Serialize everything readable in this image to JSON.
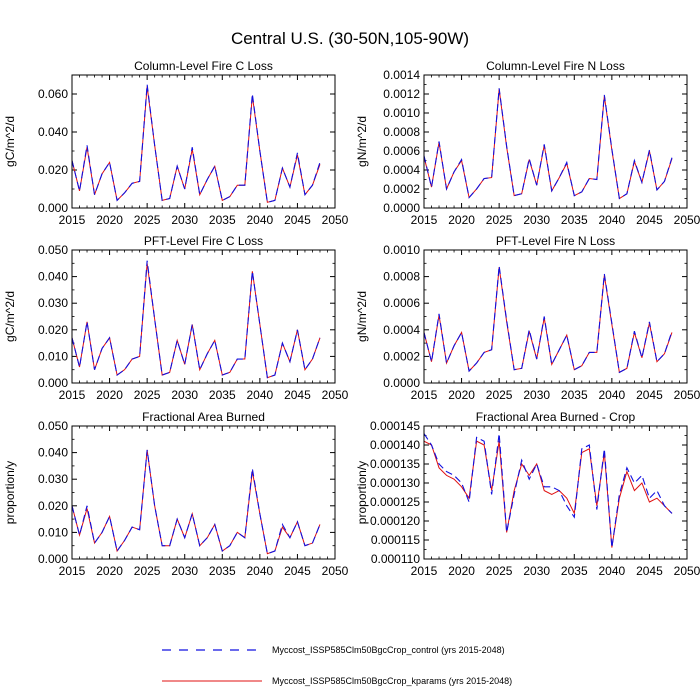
{
  "title": "Central U.S. (30-50N,105-90W)",
  "colors": {
    "control": "#1010e0",
    "kparams": "#e01010"
  },
  "legend": {
    "control": "Myccost_ISSP585Clm50BgcCrop_control (yrs 2015-2048)",
    "kparams": "Myccost_ISSP585Clm50BgcCrop_kparams (yrs 2015-2048)"
  },
  "chart_data": [
    {
      "type": "line",
      "title": "Column-Level Fire C Loss",
      "ylabel": "gC/m^2/d",
      "xlim": [
        2015,
        2050
      ],
      "ylim": [
        0,
        0.07
      ],
      "xticks": [
        2015,
        2020,
        2025,
        2030,
        2035,
        2040,
        2045,
        2050
      ],
      "yticks": [
        0,
        0.02,
        0.04,
        0.06
      ],
      "ytick_labels": [
        "0.000",
        "0.020",
        "0.040",
        "0.060"
      ],
      "x": [
        2015,
        2016,
        2017,
        2018,
        2019,
        2020,
        2021,
        2022,
        2023,
        2024,
        2025,
        2026,
        2027,
        2028,
        2029,
        2030,
        2031,
        2032,
        2033,
        2034,
        2035,
        2036,
        2037,
        2038,
        2039,
        2040,
        2041,
        2042,
        2043,
        2044,
        2045,
        2046,
        2047,
        2048
      ],
      "series": [
        {
          "name": "control",
          "values": [
            0.025,
            0.009,
            0.033,
            0.007,
            0.018,
            0.024,
            0.004,
            0.008,
            0.013,
            0.014,
            0.065,
            0.033,
            0.004,
            0.005,
            0.022,
            0.01,
            0.032,
            0.007,
            0.015,
            0.022,
            0.004,
            0.006,
            0.012,
            0.012,
            0.06,
            0.03,
            0.003,
            0.004,
            0.021,
            0.011,
            0.029,
            0.007,
            0.012,
            0.024
          ]
        },
        {
          "name": "kparams",
          "values": [
            0.025,
            0.009,
            0.032,
            0.007,
            0.018,
            0.024,
            0.004,
            0.008,
            0.013,
            0.014,
            0.064,
            0.033,
            0.004,
            0.005,
            0.022,
            0.01,
            0.031,
            0.007,
            0.015,
            0.022,
            0.004,
            0.006,
            0.012,
            0.012,
            0.059,
            0.03,
            0.003,
            0.004,
            0.021,
            0.011,
            0.028,
            0.007,
            0.012,
            0.023
          ]
        }
      ]
    },
    {
      "type": "line",
      "title": "Column-Level Fire N Loss",
      "ylabel": "gN/m^2/d",
      "xlim": [
        2015,
        2050
      ],
      "ylim": [
        0,
        0.0014
      ],
      "xticks": [
        2015,
        2020,
        2025,
        2030,
        2035,
        2040,
        2045,
        2050
      ],
      "yticks": [
        0,
        0.0002,
        0.0004,
        0.0006,
        0.0008,
        0.001,
        0.0012,
        0.0014
      ],
      "ytick_labels": [
        "0.0000",
        "0.0002",
        "0.0004",
        "0.0006",
        "0.0008",
        "0.0010",
        "0.0012",
        "0.0014"
      ],
      "x": [
        2015,
        2016,
        2017,
        2018,
        2019,
        2020,
        2021,
        2022,
        2023,
        2024,
        2025,
        2026,
        2027,
        2028,
        2029,
        2030,
        2031,
        2032,
        2033,
        2034,
        2035,
        2036,
        2037,
        2038,
        2039,
        2040,
        2041,
        2042,
        2043,
        2044,
        2045,
        2046,
        2047,
        2048
      ],
      "series": [
        {
          "name": "control",
          "values": [
            0.00055,
            0.00022,
            0.0007,
            0.0002,
            0.00038,
            0.00051,
            0.00011,
            0.0002,
            0.00031,
            0.00032,
            0.00126,
            0.00065,
            0.00013,
            0.00015,
            0.00052,
            0.00024,
            0.00067,
            0.00018,
            0.00032,
            0.00048,
            0.00013,
            0.00017,
            0.00031,
            0.0003,
            0.00119,
            0.00062,
            0.0001,
            0.00015,
            0.0005,
            0.00027,
            0.00061,
            0.00019,
            0.00028,
            0.00053
          ]
        },
        {
          "name": "kparams",
          "values": [
            0.00054,
            0.00022,
            0.00069,
            0.0002,
            0.00038,
            0.0005,
            0.00011,
            0.0002,
            0.00031,
            0.00032,
            0.00125,
            0.00064,
            0.00013,
            0.00015,
            0.00051,
            0.00024,
            0.00066,
            0.00018,
            0.00032,
            0.00047,
            0.00013,
            0.00017,
            0.00031,
            0.0003,
            0.00118,
            0.00061,
            0.0001,
            0.00015,
            0.00049,
            0.00027,
            0.0006,
            0.00019,
            0.00028,
            0.00052
          ]
        }
      ]
    },
    {
      "type": "line",
      "title": "PFT-Level Fire C Loss",
      "ylabel": "gC/m^2/d",
      "xlim": [
        2015,
        2050
      ],
      "ylim": [
        0,
        0.05
      ],
      "xticks": [
        2015,
        2020,
        2025,
        2030,
        2035,
        2040,
        2045,
        2050
      ],
      "yticks": [
        0,
        0.01,
        0.02,
        0.03,
        0.04,
        0.05
      ],
      "ytick_labels": [
        "0.000",
        "0.010",
        "0.020",
        "0.030",
        "0.040",
        "0.050"
      ],
      "x": [
        2015,
        2016,
        2017,
        2018,
        2019,
        2020,
        2021,
        2022,
        2023,
        2024,
        2025,
        2026,
        2027,
        2028,
        2029,
        2030,
        2031,
        2032,
        2033,
        2034,
        2035,
        2036,
        2037,
        2038,
        2039,
        2040,
        2041,
        2042,
        2043,
        2044,
        2045,
        2046,
        2047,
        2048
      ],
      "series": [
        {
          "name": "control",
          "values": [
            0.017,
            0.006,
            0.023,
            0.005,
            0.013,
            0.017,
            0.003,
            0.005,
            0.009,
            0.01,
            0.046,
            0.024,
            0.003,
            0.004,
            0.016,
            0.007,
            0.022,
            0.005,
            0.011,
            0.016,
            0.003,
            0.004,
            0.009,
            0.009,
            0.042,
            0.022,
            0.002,
            0.003,
            0.015,
            0.008,
            0.02,
            0.005,
            0.009,
            0.017
          ]
        },
        {
          "name": "kparams",
          "values": [
            0.017,
            0.006,
            0.023,
            0.005,
            0.013,
            0.017,
            0.003,
            0.005,
            0.009,
            0.01,
            0.045,
            0.024,
            0.003,
            0.004,
            0.016,
            0.007,
            0.022,
            0.005,
            0.011,
            0.016,
            0.003,
            0.004,
            0.009,
            0.009,
            0.042,
            0.022,
            0.002,
            0.003,
            0.015,
            0.008,
            0.02,
            0.005,
            0.009,
            0.017
          ]
        }
      ]
    },
    {
      "type": "line",
      "title": "PFT-Level Fire N Loss",
      "ylabel": "gN/m^2/d",
      "xlim": [
        2015,
        2050
      ],
      "ylim": [
        0,
        0.001
      ],
      "xticks": [
        2015,
        2020,
        2025,
        2030,
        2035,
        2040,
        2045,
        2050
      ],
      "yticks": [
        0,
        0.0002,
        0.0004,
        0.0006,
        0.0008,
        0.001
      ],
      "ytick_labels": [
        "0.0000",
        "0.0002",
        "0.0004",
        "0.0006",
        "0.0008",
        "0.0010"
      ],
      "x": [
        2015,
        2016,
        2017,
        2018,
        2019,
        2020,
        2021,
        2022,
        2023,
        2024,
        2025,
        2026,
        2027,
        2028,
        2029,
        2030,
        2031,
        2032,
        2033,
        2034,
        2035,
        2036,
        2037,
        2038,
        2039,
        2040,
        2041,
        2042,
        2043,
        2044,
        2045,
        2046,
        2047,
        2048
      ],
      "series": [
        {
          "name": "control",
          "values": [
            0.00038,
            0.00016,
            0.00052,
            0.00015,
            0.00028,
            0.00038,
            9e-05,
            0.00015,
            0.00023,
            0.00025,
            0.00088,
            0.00047,
            0.0001,
            0.00011,
            0.0004,
            0.00018,
            0.0005,
            0.00014,
            0.00025,
            0.00036,
            0.0001,
            0.00013,
            0.00023,
            0.00023,
            0.00082,
            0.00045,
            8e-05,
            0.00011,
            0.00039,
            0.00019,
            0.00046,
            0.00016,
            0.00022,
            0.00039
          ]
        },
        {
          "name": "kparams",
          "values": [
            0.00038,
            0.00016,
            0.00051,
            0.00015,
            0.00028,
            0.00038,
            9e-05,
            0.00015,
            0.00023,
            0.00025,
            0.00087,
            0.00046,
            0.0001,
            0.00011,
            0.00039,
            0.00018,
            0.00049,
            0.00014,
            0.00025,
            0.00036,
            0.0001,
            0.00013,
            0.00023,
            0.00023,
            0.00081,
            0.00044,
            8e-05,
            0.00011,
            0.00038,
            0.00019,
            0.00045,
            0.00016,
            0.00022,
            0.00038
          ]
        }
      ]
    },
    {
      "type": "line",
      "title": "Fractional Area Burned",
      "ylabel": "proportion/y",
      "xlim": [
        2015,
        2050
      ],
      "ylim": [
        0,
        0.05
      ],
      "xticks": [
        2015,
        2020,
        2025,
        2030,
        2035,
        2040,
        2045,
        2050
      ],
      "yticks": [
        0,
        0.01,
        0.02,
        0.03,
        0.04,
        0.05
      ],
      "ytick_labels": [
        "0.000",
        "0.010",
        "0.020",
        "0.030",
        "0.040",
        "0.050"
      ],
      "x": [
        2015,
        2016,
        2017,
        2018,
        2019,
        2020,
        2021,
        2022,
        2023,
        2024,
        2025,
        2026,
        2027,
        2028,
        2029,
        2030,
        2031,
        2032,
        2033,
        2034,
        2035,
        2036,
        2037,
        2038,
        2039,
        2040,
        2041,
        2042,
        2043,
        2044,
        2045,
        2046,
        2047,
        2048
      ],
      "series": [
        {
          "name": "control",
          "values": [
            0.02,
            0.009,
            0.02,
            0.006,
            0.01,
            0.016,
            0.003,
            0.007,
            0.012,
            0.011,
            0.041,
            0.02,
            0.005,
            0.005,
            0.015,
            0.008,
            0.017,
            0.005,
            0.008,
            0.013,
            0.003,
            0.005,
            0.01,
            0.008,
            0.034,
            0.017,
            0.002,
            0.003,
            0.013,
            0.008,
            0.014,
            0.005,
            0.006,
            0.013
          ]
        },
        {
          "name": "kparams",
          "values": [
            0.02,
            0.009,
            0.019,
            0.006,
            0.01,
            0.016,
            0.003,
            0.007,
            0.012,
            0.011,
            0.041,
            0.02,
            0.005,
            0.005,
            0.015,
            0.008,
            0.017,
            0.005,
            0.008,
            0.013,
            0.003,
            0.005,
            0.01,
            0.008,
            0.033,
            0.017,
            0.002,
            0.003,
            0.012,
            0.008,
            0.014,
            0.005,
            0.006,
            0.013
          ]
        }
      ]
    },
    {
      "type": "line",
      "title": "Fractional Area Burned - Crop",
      "ylabel": "proportion/y",
      "xlim": [
        2015,
        2050
      ],
      "ylim": [
        0.00011,
        0.000145
      ],
      "xticks": [
        2015,
        2020,
        2025,
        2030,
        2035,
        2040,
        2045,
        2050
      ],
      "yticks": [
        0.00011,
        0.000115,
        0.00012,
        0.000125,
        0.00013,
        0.000135,
        0.00014,
        0.000145
      ],
      "ytick_labels": [
        "0.000110",
        "0.000115",
        "0.000120",
        "0.000125",
        "0.000130",
        "0.000135",
        "0.000140",
        "0.000145"
      ],
      "x": [
        2015,
        2016,
        2017,
        2018,
        2019,
        2020,
        2021,
        2022,
        2023,
        2024,
        2025,
        2026,
        2027,
        2028,
        2029,
        2030,
        2031,
        2032,
        2033,
        2034,
        2035,
        2036,
        2037,
        2038,
        2039,
        2040,
        2041,
        2042,
        2043,
        2044,
        2045,
        2046,
        2047,
        2048
      ],
      "series": [
        {
          "name": "control",
          "values": [
            0.000143,
            0.00014,
            0.000135,
            0.000133,
            0.000132,
            0.00013,
            0.000125,
            0.000142,
            0.000141,
            0.000127,
            0.000143,
            0.000117,
            0.000127,
            0.000136,
            0.000131,
            0.000135,
            0.000129,
            0.000129,
            0.000128,
            0.000124,
            0.000121,
            0.000139,
            0.00014,
            0.000123,
            0.000139,
            0.000113,
            0.000127,
            0.000134,
            0.00013,
            0.000132,
            0.000126,
            0.000128,
            0.000124,
            0.000122
          ]
        },
        {
          "name": "kparams",
          "values": [
            0.000141,
            0.00014,
            0.000134,
            0.000132,
            0.000131,
            0.000129,
            0.000126,
            0.000141,
            0.00014,
            0.000128,
            0.000141,
            0.000117,
            0.000128,
            0.000135,
            0.000132,
            0.000135,
            0.000128,
            0.000127,
            0.000128,
            0.000126,
            0.000122,
            0.000138,
            0.000139,
            0.000124,
            0.000138,
            0.000113,
            0.000126,
            0.000133,
            0.000128,
            0.00013,
            0.000125,
            0.000126,
            0.000124,
            0.000122
          ]
        }
      ]
    }
  ]
}
